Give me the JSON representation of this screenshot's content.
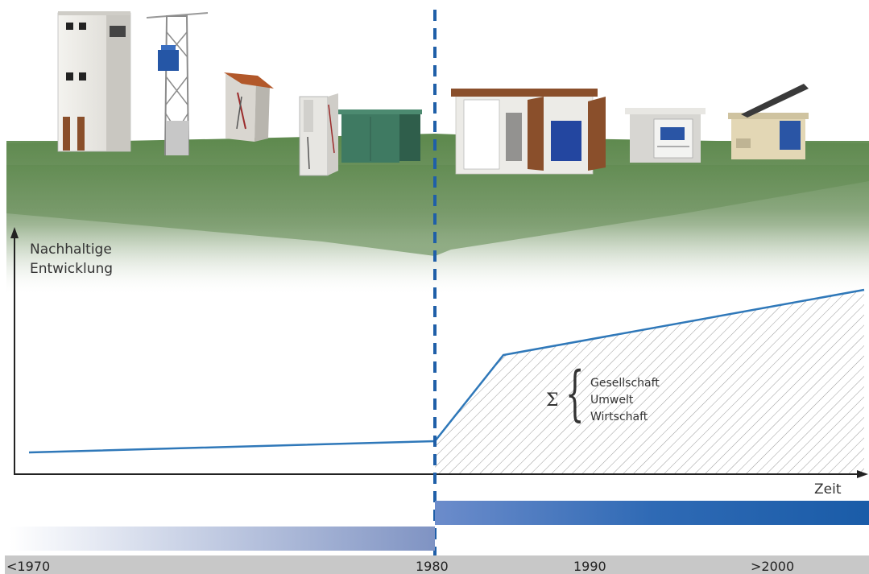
{
  "axis": {
    "y_label_line1": "Nachhaltige",
    "y_label_line2": "Entwicklung",
    "x_label": "Zeit"
  },
  "sum_symbol": "Σ",
  "factors": [
    "Gesellschaft",
    "Umwelt",
    "Wirtschaft"
  ],
  "timeline": {
    "ticks": [
      "<1970",
      "1980",
      "1990",
      ">2000"
    ]
  },
  "colors": {
    "curve": "#2f78b9",
    "divider": "#1f5fa8",
    "ground": "#5f8a4f",
    "bar_dark": "#1a5ca8",
    "bar_light": "#8fa3cc",
    "timebar": "#c8c8c8"
  },
  "icons": [
    "tower-substation-icon",
    "pole-transformer-icon",
    "wall-cabinet-icon",
    "switchgear-cabinet-icon",
    "green-kiosk-icon",
    "compact-substation-icon",
    "modern-compact-station-icon",
    "open-roof-station-icon"
  ]
}
